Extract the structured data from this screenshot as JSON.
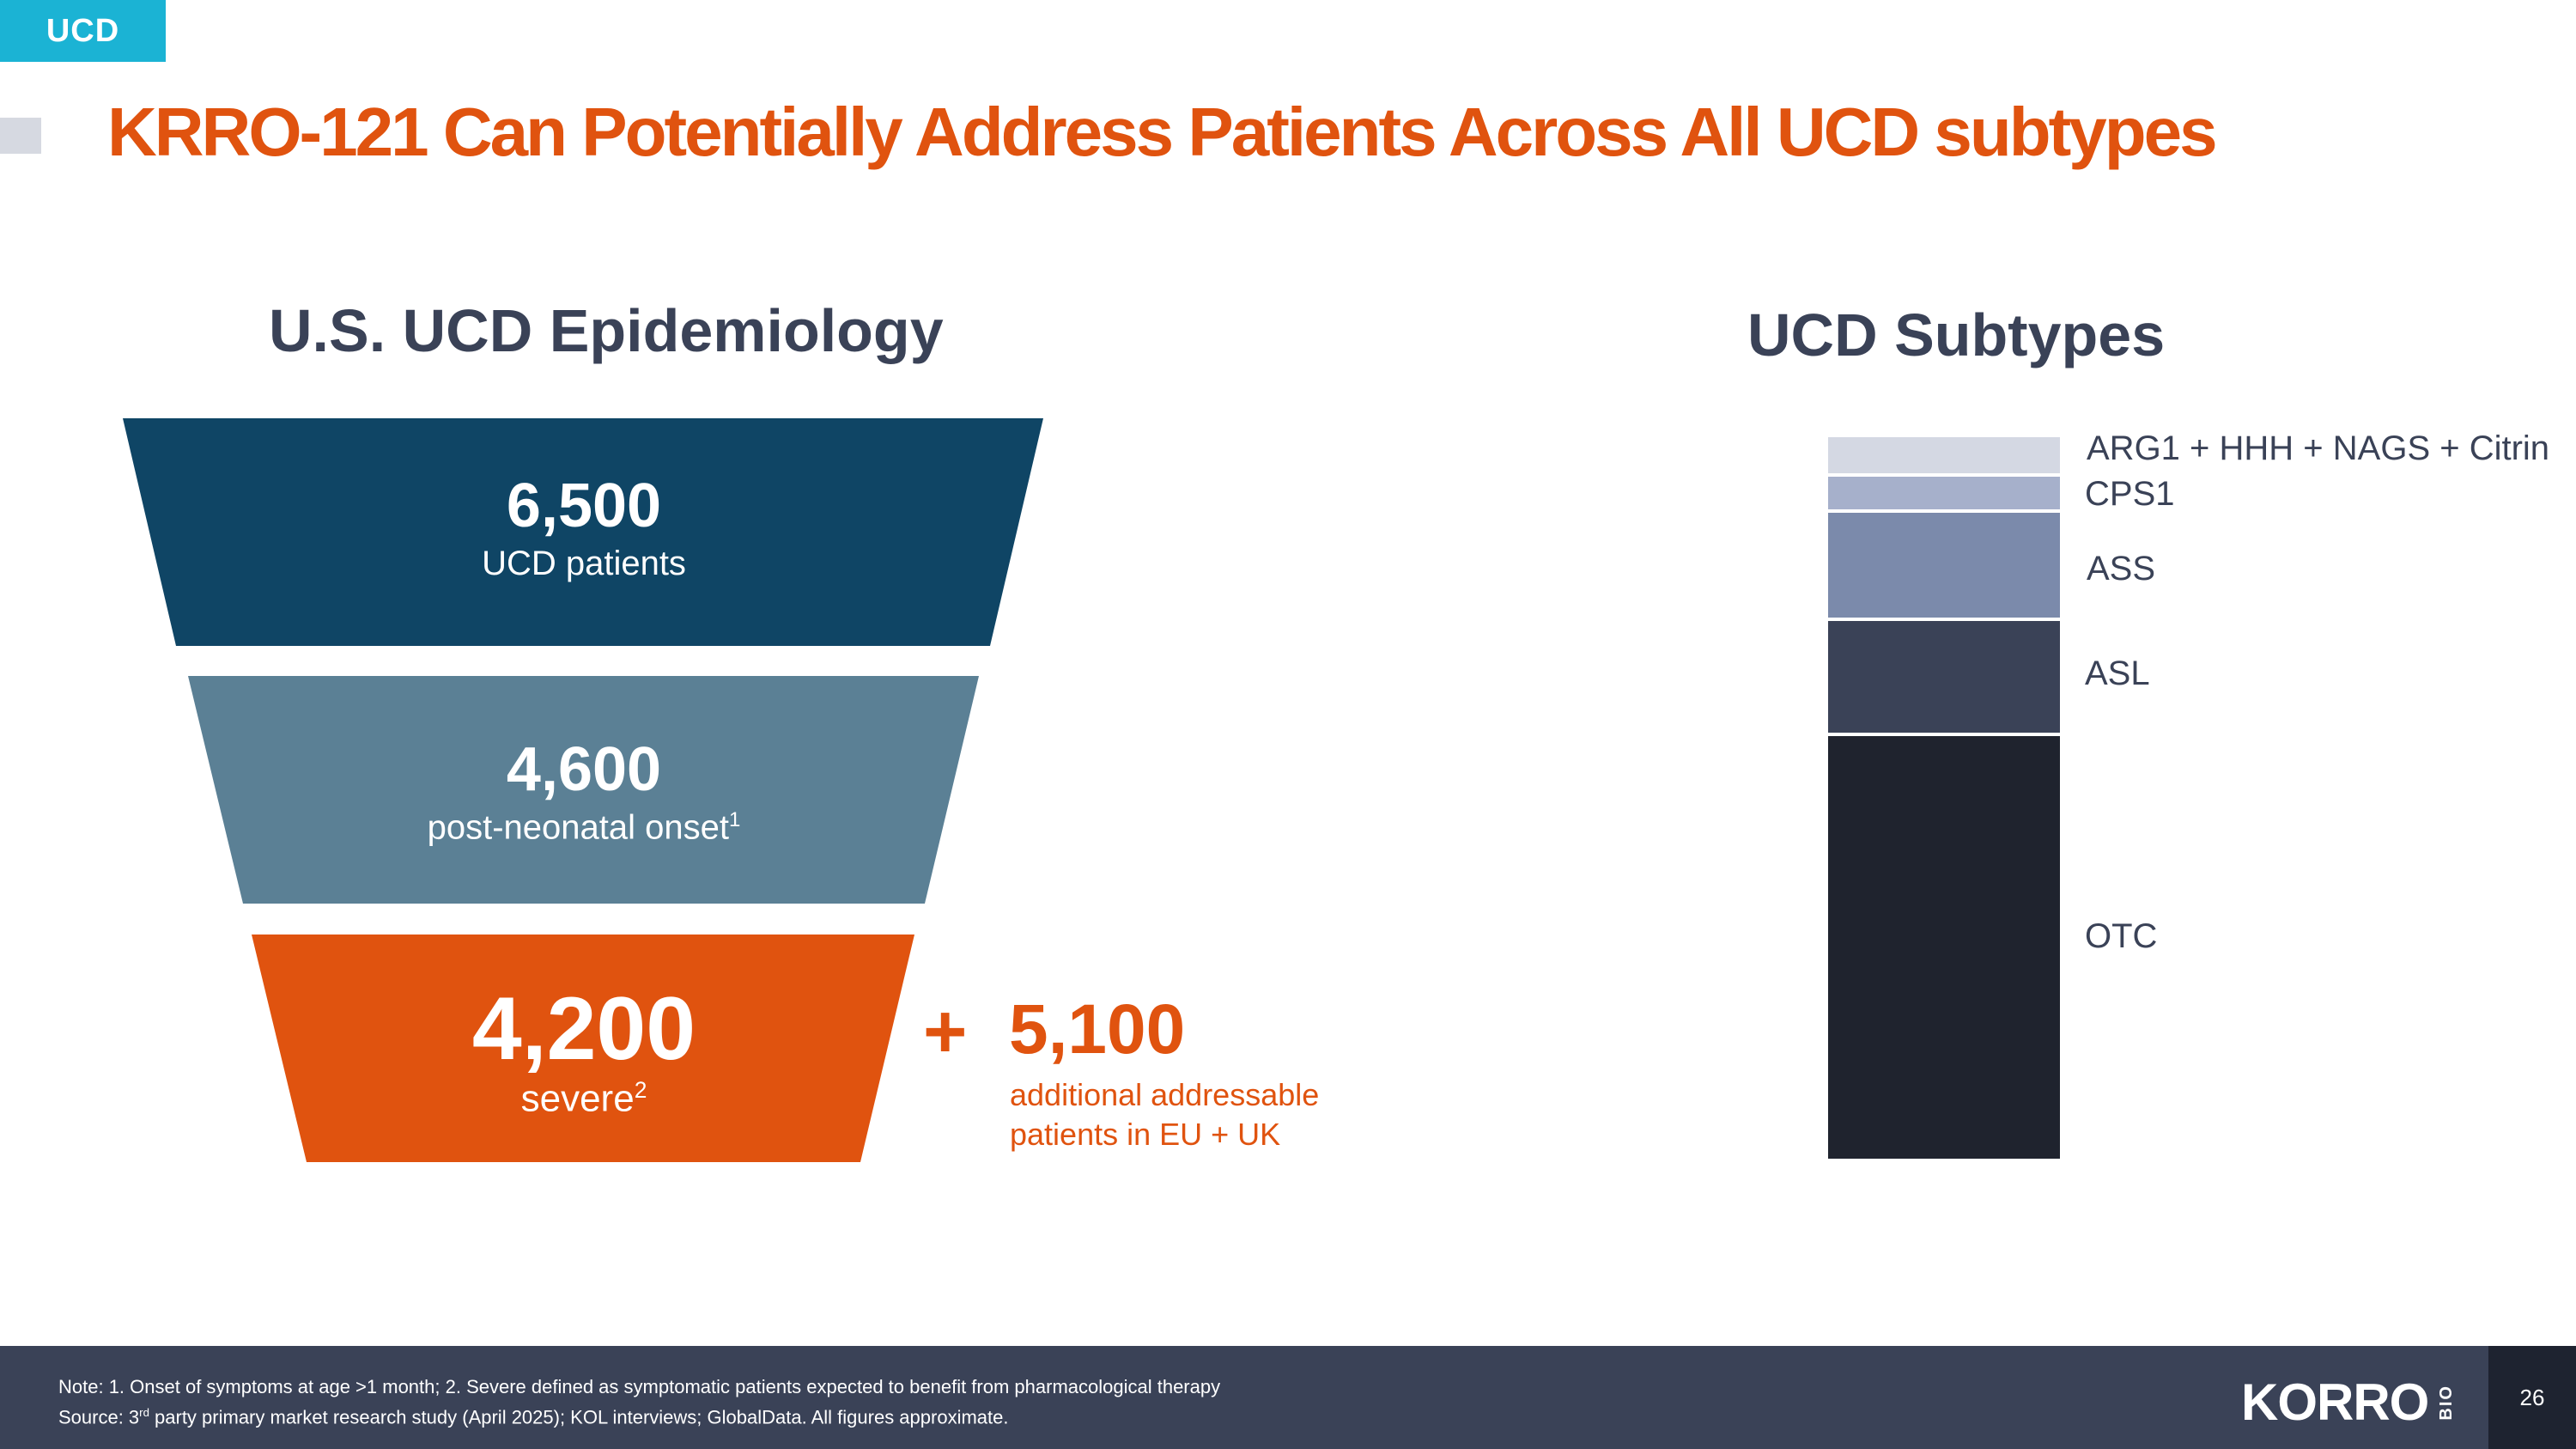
{
  "tag": "UCD",
  "title": "KRRO-121 Can Potentially Address Patients Across All UCD subtypes",
  "left_title": "U.S. UCD Epidemiology",
  "right_title": "UCD Subtypes",
  "funnel": {
    "tier1": {
      "value": "6,500",
      "label": "UCD patients",
      "color": "#0f4565"
    },
    "tier2": {
      "value": "4,600",
      "label": "post-neonatal onset",
      "sup": "1",
      "color": "#5b8095"
    },
    "tier3": {
      "value": "4,200",
      "label": "severe",
      "sup": "2",
      "color": "#e0530f"
    }
  },
  "additional": {
    "plus": "+",
    "value": "5,100",
    "line1": "additional addressable",
    "line2": "patients in EU + UK"
  },
  "subtypes": [
    {
      "label": "ARG1 + HHH + NAGS + Citrin",
      "color": "#d4d8e3"
    },
    {
      "label": "CPS1",
      "color": "#a6b0cb"
    },
    {
      "label": "ASS",
      "color": "#7b8aab"
    },
    {
      "label": "ASL",
      "color": "#3a4257"
    },
    {
      "label": "OTC",
      "color": "#1f232e"
    }
  ],
  "footer": {
    "note": "Note: 1. Onset of symptoms at age >1 month; 2. Severe defined as symptomatic patients expected to benefit from pharmacological therapy",
    "source_pre": "Source: 3",
    "source_sup": "rd",
    "source_post": " party primary market research study (April 2025); KOL interviews; GlobalData. All figures approximate.",
    "logo": "KORRO",
    "logo_suffix": "BIO",
    "page": "26"
  }
}
